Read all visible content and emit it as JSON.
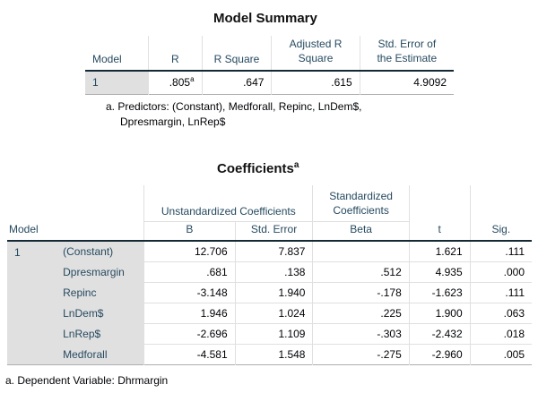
{
  "model_summary": {
    "title": "Model Summary",
    "headers": {
      "model": "Model",
      "r": "R",
      "r_square": "R Square",
      "adj_r_square": "Adjusted R Square",
      "std_error": "Std. Error of the Estimate"
    },
    "row": {
      "model": "1",
      "r": ".805",
      "r_sup": "a",
      "r_square": ".647",
      "adj_r_square": ".615",
      "std_error": "4.9092"
    },
    "footnote_line1": "a. Predictors: (Constant), Medforall, Repinc, LnDem$,",
    "footnote_line2": "Dpresmargin, LnRep$"
  },
  "coefficients": {
    "title": "Coefficients",
    "title_sup": "a",
    "headers": {
      "model": "Model",
      "unstd": "Unstandardized Coefficients",
      "std": "Standardized Coefficients",
      "b": "B",
      "std_error": "Std. Error",
      "beta": "Beta",
      "t": "t",
      "sig": "Sig."
    },
    "model_label": "1",
    "rows": [
      {
        "name": "(Constant)",
        "b": "12.706",
        "se": "7.837",
        "beta": "",
        "t": "1.621",
        "sig": ".111"
      },
      {
        "name": "Dpresmargin",
        "b": ".681",
        "se": ".138",
        "beta": ".512",
        "t": "4.935",
        "sig": ".000"
      },
      {
        "name": "Repinc",
        "b": "-3.148",
        "se": "1.940",
        "beta": "-.178",
        "t": "-1.623",
        "sig": ".111"
      },
      {
        "name": "LnDem$",
        "b": "1.946",
        "se": "1.024",
        "beta": ".225",
        "t": "1.900",
        "sig": ".063"
      },
      {
        "name": "LnRep$",
        "b": "-2.696",
        "se": "1.109",
        "beta": "-.303",
        "t": "-2.432",
        "sig": ".018"
      },
      {
        "name": "Medforall",
        "b": "-4.581",
        "se": "1.548",
        "beta": "-.275",
        "t": "-2.960",
        "sig": ".005"
      }
    ],
    "footnote": "a. Dependent Variable: Dhrmargin"
  }
}
